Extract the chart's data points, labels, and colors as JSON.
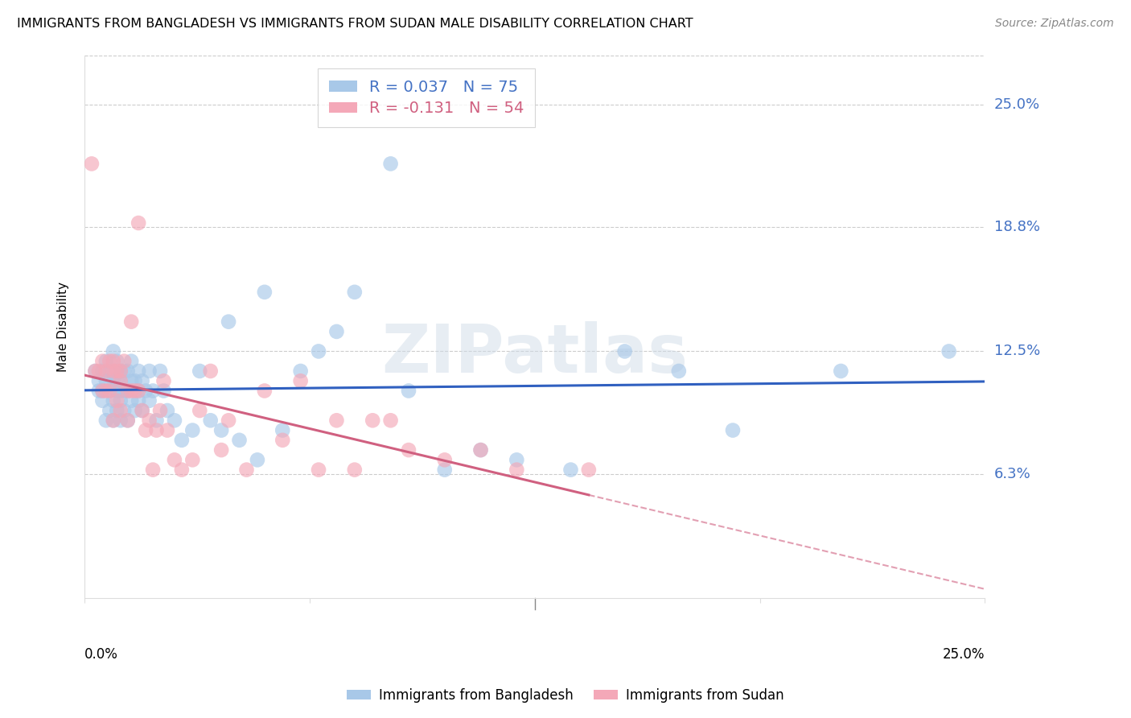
{
  "title": "IMMIGRANTS FROM BANGLADESH VS IMMIGRANTS FROM SUDAN MALE DISABILITY CORRELATION CHART",
  "source": "Source: ZipAtlas.com",
  "ylabel": "Male Disability",
  "ytick_labels": [
    "25.0%",
    "18.8%",
    "12.5%",
    "6.3%"
  ],
  "ytick_values": [
    0.25,
    0.188,
    0.125,
    0.063
  ],
  "xlim": [
    0.0,
    0.25
  ],
  "ylim": [
    0.0,
    0.275
  ],
  "bangladesh_color": "#a8c8e8",
  "sudan_color": "#f4a8b8",
  "bangladesh_line_color": "#3060c0",
  "sudan_line_color": "#d06080",
  "background_color": "#ffffff",
  "grid_color": "#cccccc",
  "watermark": "ZIPatlas",
  "bangladesh_x": [
    0.003,
    0.004,
    0.004,
    0.005,
    0.005,
    0.005,
    0.006,
    0.006,
    0.006,
    0.007,
    0.007,
    0.007,
    0.008,
    0.008,
    0.008,
    0.008,
    0.009,
    0.009,
    0.009,
    0.009,
    0.01,
    0.01,
    0.01,
    0.01,
    0.01,
    0.011,
    0.011,
    0.011,
    0.012,
    0.012,
    0.012,
    0.013,
    0.013,
    0.013,
    0.014,
    0.014,
    0.015,
    0.015,
    0.015,
    0.016,
    0.016,
    0.017,
    0.018,
    0.018,
    0.019,
    0.02,
    0.021,
    0.022,
    0.023,
    0.025,
    0.027,
    0.03,
    0.032,
    0.035,
    0.038,
    0.04,
    0.043,
    0.048,
    0.05,
    0.055,
    0.06,
    0.065,
    0.07,
    0.075,
    0.085,
    0.09,
    0.1,
    0.11,
    0.12,
    0.135,
    0.15,
    0.165,
    0.18,
    0.21,
    0.24
  ],
  "bangladesh_y": [
    0.115,
    0.105,
    0.11,
    0.1,
    0.105,
    0.115,
    0.09,
    0.11,
    0.12,
    0.095,
    0.105,
    0.115,
    0.09,
    0.1,
    0.11,
    0.125,
    0.095,
    0.105,
    0.11,
    0.12,
    0.09,
    0.1,
    0.105,
    0.11,
    0.115,
    0.095,
    0.105,
    0.115,
    0.09,
    0.105,
    0.115,
    0.1,
    0.11,
    0.12,
    0.095,
    0.11,
    0.1,
    0.105,
    0.115,
    0.095,
    0.11,
    0.105,
    0.1,
    0.115,
    0.105,
    0.09,
    0.115,
    0.105,
    0.095,
    0.09,
    0.08,
    0.085,
    0.115,
    0.09,
    0.085,
    0.14,
    0.08,
    0.07,
    0.155,
    0.085,
    0.115,
    0.125,
    0.135,
    0.155,
    0.22,
    0.105,
    0.065,
    0.075,
    0.07,
    0.065,
    0.125,
    0.115,
    0.085,
    0.115,
    0.125
  ],
  "sudan_x": [
    0.002,
    0.003,
    0.004,
    0.005,
    0.005,
    0.006,
    0.006,
    0.007,
    0.007,
    0.008,
    0.008,
    0.008,
    0.009,
    0.009,
    0.01,
    0.01,
    0.01,
    0.011,
    0.012,
    0.012,
    0.013,
    0.013,
    0.014,
    0.015,
    0.015,
    0.016,
    0.017,
    0.018,
    0.019,
    0.02,
    0.021,
    0.022,
    0.023,
    0.025,
    0.027,
    0.03,
    0.032,
    0.035,
    0.038,
    0.04,
    0.045,
    0.05,
    0.055,
    0.06,
    0.065,
    0.07,
    0.075,
    0.08,
    0.085,
    0.09,
    0.1,
    0.11,
    0.12,
    0.14
  ],
  "sudan_y": [
    0.22,
    0.115,
    0.115,
    0.105,
    0.12,
    0.105,
    0.115,
    0.105,
    0.12,
    0.09,
    0.115,
    0.12,
    0.1,
    0.115,
    0.095,
    0.11,
    0.115,
    0.12,
    0.09,
    0.105,
    0.105,
    0.14,
    0.105,
    0.105,
    0.19,
    0.095,
    0.085,
    0.09,
    0.065,
    0.085,
    0.095,
    0.11,
    0.085,
    0.07,
    0.065,
    0.07,
    0.095,
    0.115,
    0.075,
    0.09,
    0.065,
    0.105,
    0.08,
    0.11,
    0.065,
    0.09,
    0.065,
    0.09,
    0.09,
    0.075,
    0.07,
    0.075,
    0.065,
    0.065
  ]
}
